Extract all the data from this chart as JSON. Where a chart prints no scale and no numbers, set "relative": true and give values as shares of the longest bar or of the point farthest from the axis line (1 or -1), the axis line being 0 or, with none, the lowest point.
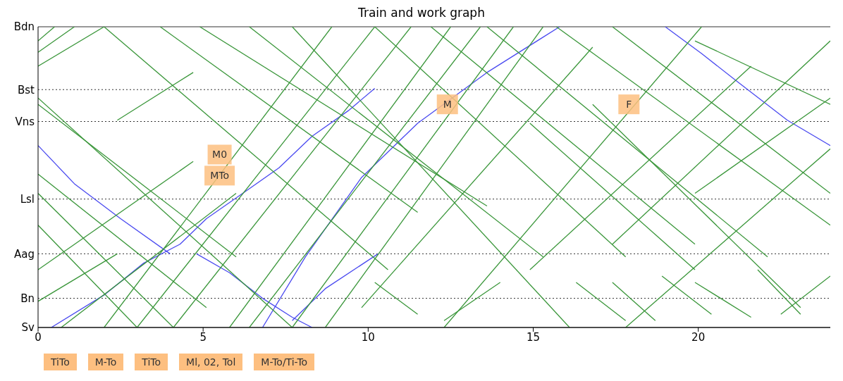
{
  "chart_data": {
    "type": "line",
    "title": "Train and work graph",
    "xlim": [
      0,
      24
    ],
    "xticks": [
      0,
      5,
      10,
      15,
      20
    ],
    "relative": true,
    "line_style": "solid",
    "marker": "none",
    "ref_lines": [
      {
        "axis": "y",
        "value": 0,
        "label": "Sv",
        "line_style": "solid"
      },
      {
        "axis": "y",
        "value": 0.097,
        "label": "Bn",
        "line_style": "dotted"
      },
      {
        "axis": "y",
        "value": 0.245,
        "label": "Aag",
        "line_style": "dotted"
      },
      {
        "axis": "y",
        "value": 0.427,
        "label": "Lsl",
        "line_style": "dotted"
      },
      {
        "axis": "y",
        "value": 0.685,
        "label": "Vns",
        "line_style": "dotted"
      },
      {
        "axis": "y",
        "value": 0.791,
        "label": "Bst",
        "line_style": "dotted"
      },
      {
        "axis": "y",
        "value": 1,
        "label": "Bdn",
        "line_style": "solid"
      }
    ],
    "series": [
      {
        "color": "#4a4af0",
        "x": [
          0,
          1.1,
          2.5,
          4.0
        ],
        "values": [
          0.605,
          0.478,
          0.362,
          0.245
        ]
      },
      {
        "color": "#4a4af0",
        "x": [
          4.8,
          5.8,
          6.8,
          7.7,
          8.3
        ],
        "values": [
          0.245,
          0.182,
          0.097,
          0.034,
          0
        ]
      },
      {
        "color": "#4a4af0",
        "x": [
          0.4,
          2.0,
          3.2,
          4.3,
          5.1,
          6.2,
          7.3,
          8.3,
          9.4,
          10.2
        ],
        "values": [
          0,
          0.108,
          0.214,
          0.277,
          0.362,
          0.446,
          0.531,
          0.636,
          0.721,
          0.795
        ]
      },
      {
        "color": "#4a4af0",
        "x": [
          6.8,
          8.1,
          9.8,
          11.5,
          13.6,
          15.8
        ],
        "values": [
          0,
          0.235,
          0.499,
          0.679,
          0.848,
          1
        ]
      },
      {
        "color": "#4a4af0",
        "x": [
          7.7,
          8.7,
          10.3
        ],
        "values": [
          0.023,
          0.129,
          0.245
        ]
      },
      {
        "color": "#4a4af0",
        "x": [
          19.0,
          20.1,
          21.2,
          22.7,
          24.0
        ],
        "values": [
          1,
          0.911,
          0.816,
          0.689,
          0.605
        ]
      },
      {
        "color": "#3a963a",
        "x": [
          0,
          1.1
        ],
        "values": [
          0.915,
          1
        ]
      },
      {
        "color": "#3a963a",
        "x": [
          0,
          2.0
        ],
        "values": [
          0.869,
          1
        ]
      },
      {
        "color": "#3a963a",
        "x": [
          0,
          0.5
        ],
        "values": [
          0.953,
          1
        ]
      },
      {
        "color": "#3a963a",
        "x": [
          2.0,
          8.9
        ],
        "values": [
          0,
          1
        ]
      },
      {
        "color": "#3a963a",
        "x": [
          3.0,
          10.2
        ],
        "values": [
          0,
          1
        ]
      },
      {
        "color": "#3a963a",
        "x": [
          4.1,
          11.3
        ],
        "values": [
          0,
          1
        ]
      },
      {
        "color": "#3a963a",
        "x": [
          5.8,
          12.5
        ],
        "values": [
          0,
          1
        ]
      },
      {
        "color": "#3a963a",
        "x": [
          6.4,
          13.4
        ],
        "values": [
          0,
          1
        ]
      },
      {
        "color": "#3a963a",
        "x": [
          7.7,
          14.4
        ],
        "values": [
          0,
          1
        ]
      },
      {
        "color": "#3a963a",
        "x": [
          8.7,
          15.3
        ],
        "values": [
          0,
          1
        ]
      },
      {
        "color": "#3a963a",
        "x": [
          9.8,
          16.8
        ],
        "values": [
          0.066,
          0.932
        ]
      },
      {
        "color": "#3a963a",
        "x": [
          12.3,
          20.1
        ],
        "values": [
          0,
          1
        ]
      },
      {
        "color": "#3a963a",
        "x": [
          14.9,
          21.6
        ],
        "values": [
          0.192,
          0.869
        ]
      },
      {
        "color": "#3a963a",
        "x": [
          17.4,
          24.0
        ],
        "values": [
          0.277,
          0.953
        ]
      },
      {
        "color": "#3a963a",
        "x": [
          19.9,
          24.0
        ],
        "values": [
          0.446,
          0.763
        ]
      },
      {
        "color": "#3a963a",
        "x": [
          17.8,
          24.0
        ],
        "values": [
          0,
          0.594
        ]
      },
      {
        "color": "#3a963a",
        "x": [
          0,
          2.4
        ],
        "values": [
          0.087,
          0.245
        ]
      },
      {
        "color": "#3a963a",
        "x": [
          2.4,
          4.7
        ],
        "values": [
          0.689,
          0.848
        ]
      },
      {
        "color": "#3a963a",
        "x": [
          0,
          4.7
        ],
        "values": [
          0.192,
          0.552
        ]
      },
      {
        "color": "#3a963a",
        "x": [
          0.7,
          6.0
        ],
        "values": [
          0,
          0.446
        ]
      },
      {
        "color": "#3a963a",
        "x": [
          0,
          7.7
        ],
        "values": [
          0.763,
          0
        ]
      },
      {
        "color": "#3a963a",
        "x": [
          0,
          6.0
        ],
        "values": [
          0.742,
          0.235
        ]
      },
      {
        "color": "#3a963a",
        "x": [
          2.0,
          10.6
        ],
        "values": [
          1,
          0.192
        ]
      },
      {
        "color": "#3a963a",
        "x": [
          3.7,
          11.5
        ],
        "values": [
          1,
          0.383
        ]
      },
      {
        "color": "#3a963a",
        "x": [
          4.9,
          13.6
        ],
        "values": [
          1,
          0.404
        ]
      },
      {
        "color": "#3a963a",
        "x": [
          6.4,
          15.3
        ],
        "values": [
          1,
          0.235
        ]
      },
      {
        "color": "#3a963a",
        "x": [
          7.7,
          16.1
        ],
        "values": [
          1,
          0
        ]
      },
      {
        "color": "#3a963a",
        "x": [
          10.2,
          17.8
        ],
        "values": [
          1,
          0.235
        ]
      },
      {
        "color": "#3a963a",
        "x": [
          11.9,
          19.9
        ],
        "values": [
          1,
          0.277
        ]
      },
      {
        "color": "#3a963a",
        "x": [
          13.6,
          22.1
        ],
        "values": [
          1,
          0.235
        ]
      },
      {
        "color": "#3a963a",
        "x": [
          15.7,
          24.0
        ],
        "values": [
          1,
          0.34
        ]
      },
      {
        "color": "#3a963a",
        "x": [
          17.4,
          24.0
        ],
        "values": [
          1,
          0.446
        ]
      },
      {
        "color": "#3a963a",
        "x": [
          0,
          4.1
        ],
        "values": [
          0.446,
          0
        ]
      },
      {
        "color": "#3a963a",
        "x": [
          0,
          3.0
        ],
        "values": [
          0.34,
          0
        ]
      },
      {
        "color": "#3a963a",
        "x": [
          0,
          5.1
        ],
        "values": [
          0.51,
          0.066
        ]
      },
      {
        "color": "#3a963a",
        "x": [
          19.9,
          24.0
        ],
        "values": [
          0.953,
          0.742
        ]
      },
      {
        "color": "#3a963a",
        "x": [
          14.9,
          19.9
        ],
        "values": [
          0.679,
          0.192
        ]
      },
      {
        "color": "#3a963a",
        "x": [
          16.8,
          23.1
        ],
        "values": [
          0.742,
          0.066
        ]
      },
      {
        "color": "#3a963a",
        "x": [
          16.3,
          17.8
        ],
        "values": [
          0.15,
          0.023
        ]
      },
      {
        "color": "#3a963a",
        "x": [
          17.4,
          18.7
        ],
        "values": [
          0.15,
          0.023
        ]
      },
      {
        "color": "#3a963a",
        "x": [
          18.9,
          20.4
        ],
        "values": [
          0.171,
          0.044
        ]
      },
      {
        "color": "#3a963a",
        "x": [
          19.9,
          21.6
        ],
        "values": [
          0.15,
          0.034
        ]
      },
      {
        "color": "#3a963a",
        "x": [
          21.8,
          23.1
        ],
        "values": [
          0.192,
          0.044
        ]
      },
      {
        "color": "#3a963a",
        "x": [
          22.5,
          24.0
        ],
        "values": [
          0.044,
          0.171
        ]
      },
      {
        "color": "#3a963a",
        "x": [
          10.2,
          11.5
        ],
        "values": [
          0.15,
          0.044
        ]
      },
      {
        "color": "#3a963a",
        "x": [
          12.3,
          14.0
        ],
        "values": [
          0.023,
          0.15
        ]
      }
    ],
    "annotations": [
      "TiTo",
      "M-To",
      "TiTo",
      {
        "text": "M0",
        "x": 5.5,
        "y": 0.575
      },
      {
        "text": "MTo",
        "x": 5.5,
        "y": 0.505
      },
      "Ml, 02, Tol",
      {
        "text": "M",
        "x": 12.4,
        "y": 0.742
      },
      {
        "text": "F",
        "x": 17.9,
        "y": 0.742
      },
      "M-To/Ti-To"
    ]
  }
}
